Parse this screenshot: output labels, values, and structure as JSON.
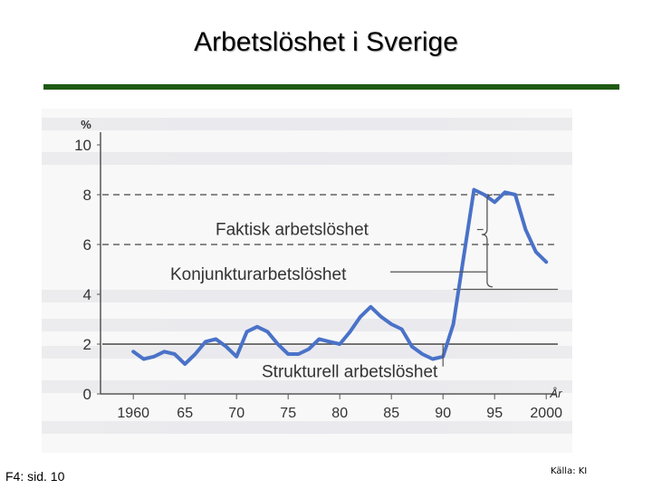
{
  "slide": {
    "title": "Arbetslöshet i Sverige",
    "footer_left": "F4: sid. 10",
    "footer_right": "Källa: KI"
  },
  "colors": {
    "title_rule": "#1e5a14",
    "series_line": "#4a72c8",
    "dashed_line": "#444444"
  },
  "chart_data": {
    "type": "line",
    "title": "",
    "xlabel": "År",
    "ylabel": "%",
    "xlim": [
      1957,
      2002
    ],
    "ylim": [
      0,
      10
    ],
    "x_ticks": [
      "1960",
      "65",
      "70",
      "75",
      "80",
      "85",
      "90",
      "95",
      "2000"
    ],
    "x_tick_values": [
      1960,
      1965,
      1970,
      1975,
      1980,
      1985,
      1990,
      1995,
      2000
    ],
    "y_ticks": [
      "0",
      "2",
      "4",
      "6",
      "8",
      "10"
    ],
    "y_tick_values": [
      0,
      2,
      4,
      6,
      8,
      10
    ],
    "grid": "dashed horizontal lines at 2, 6 and 8",
    "series": [
      {
        "x": [
          1960,
          1961,
          1962,
          1963,
          1964,
          1965,
          1966,
          1967,
          1968,
          1969,
          1970,
          1971,
          1972,
          1973,
          1974,
          1975,
          1976,
          1977,
          1978,
          1979,
          1980,
          1981,
          1982,
          1983,
          1984,
          1985,
          1986,
          1987,
          1988,
          1989,
          1990,
          1991,
          1992,
          1993,
          1994,
          1995,
          1996,
          1997,
          1998,
          1999,
          2000
        ],
        "y": [
          1.7,
          1.4,
          1.5,
          1.7,
          1.6,
          1.2,
          1.6,
          2.1,
          2.2,
          1.9,
          1.5,
          2.5,
          2.7,
          2.5,
          2.0,
          1.6,
          1.6,
          1.8,
          2.2,
          2.1,
          2.0,
          2.5,
          3.1,
          3.5,
          3.1,
          2.8,
          2.6,
          1.9,
          1.6,
          1.4,
          1.5,
          2.8,
          5.5,
          8.2,
          8.0,
          7.7,
          8.1,
          8.0,
          6.6,
          5.7,
          5.3
        ]
      }
    ],
    "annotations": [
      {
        "text": "Faktisk arbetslöshet",
        "x": 1984,
        "y": 6.6
      },
      {
        "text": "Konjunkturarbetslöshet",
        "x": 1980,
        "y": 4.8
      },
      {
        "text": "Strukturell arbetslöshet",
        "x": 1990,
        "y": 0.9
      }
    ]
  }
}
